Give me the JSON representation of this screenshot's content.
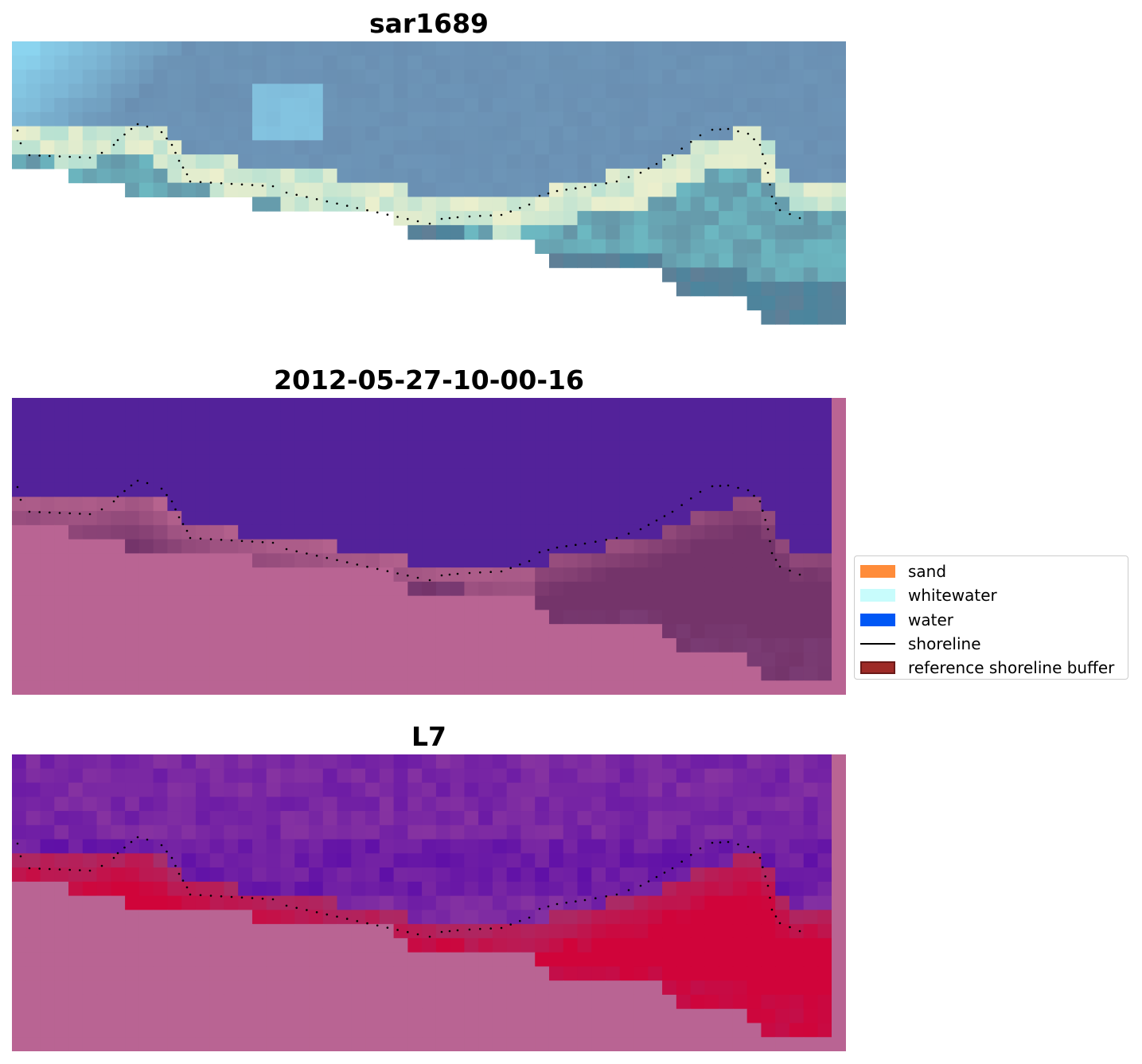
{
  "panels": [
    {
      "id": "rgb",
      "title": "sar1689"
    },
    {
      "id": "classification",
      "title": "2012-05-27-10-00-16"
    },
    {
      "id": "mndwi",
      "title": "L7"
    }
  ],
  "legend": {
    "items": [
      {
        "label": "sand",
        "color": "#ff8c3a",
        "kind": "patch"
      },
      {
        "label": "whitewater",
        "color": "#c8fcfc",
        "kind": "patch"
      },
      {
        "label": "water",
        "color": "#0057f5",
        "kind": "patch"
      },
      {
        "label": "shoreline",
        "color": "#000000",
        "kind": "line"
      },
      {
        "label": "reference shoreline buffer",
        "color": "#9e2b27",
        "kind": "patch-border"
      }
    ]
  },
  "colors": {
    "background": "#ffffff",
    "land_mask": "#b96493",
    "class_water": "#53229a",
    "class_sand": "#74346a",
    "class_whitewater": "#b7648f",
    "index_low": "#5a0ba8",
    "index_high": "#d0043a",
    "rgb_sky": "#8fdcf6",
    "rgb_water": "#6a8fb2",
    "rgb_white": "#f6f2cc",
    "rgb_sand": "#607f96",
    "shoreline_dots": "#000000"
  }
}
